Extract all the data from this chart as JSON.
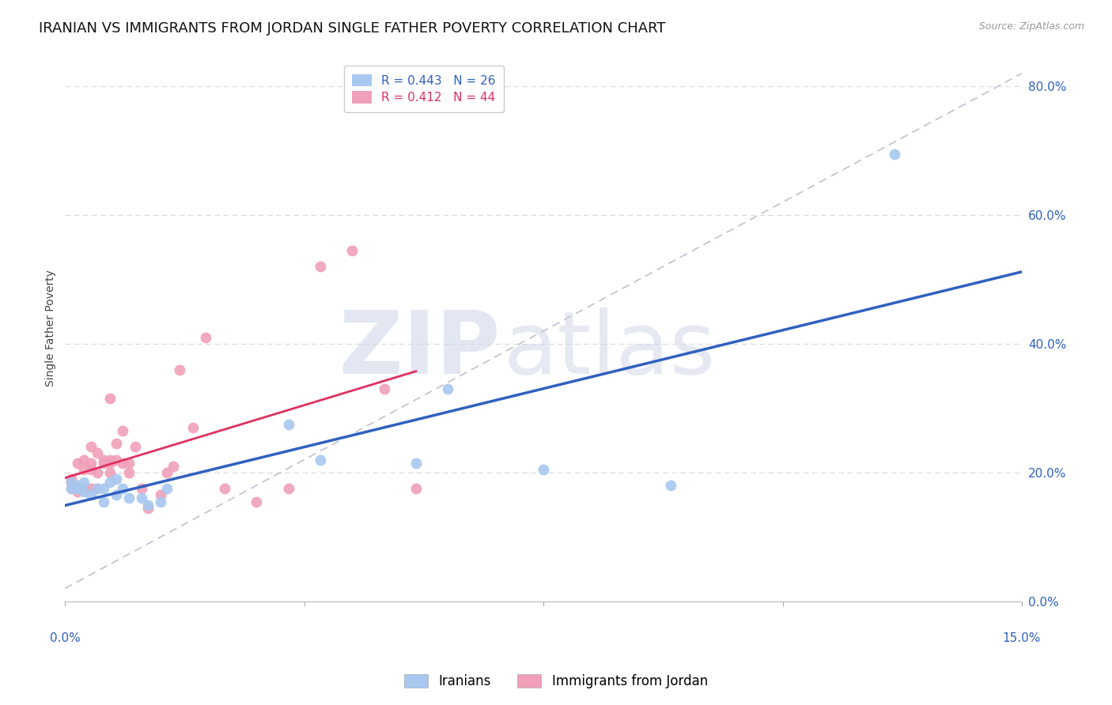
{
  "title": "IRANIAN VS IMMIGRANTS FROM JORDAN SINGLE FATHER POVERTY CORRELATION CHART",
  "source": "Source: ZipAtlas.com",
  "ylabel": "Single Father Poverty",
  "right_yticks": [
    0.0,
    0.2,
    0.4,
    0.6,
    0.8
  ],
  "right_yticklabels": [
    "0.0%",
    "20.0%",
    "40.0%",
    "60.0%",
    "80.0%"
  ],
  "xlim": [
    0.0,
    0.15
  ],
  "ylim": [
    0.0,
    0.85
  ],
  "legend_blue_R": "R = 0.443",
  "legend_blue_N": "N = 26",
  "legend_pink_R": "R = 0.412",
  "legend_pink_N": "N = 44",
  "blue_color": "#a8c8f0",
  "pink_color": "#f0a0b8",
  "blue_line_color": "#3060c0",
  "pink_line_color": "#e03060",
  "ref_line_color": "#c0c0d0",
  "background_color": "#ffffff",
  "grid_color": "#d8d8e0",
  "iranians_x": [
    0.001,
    0.001,
    0.002,
    0.002,
    0.003,
    0.003,
    0.004,
    0.005,
    0.006,
    0.006,
    0.007,
    0.008,
    0.008,
    0.009,
    0.01,
    0.012,
    0.013,
    0.015,
    0.016,
    0.035,
    0.04,
    0.055,
    0.06,
    0.075,
    0.095,
    0.13
  ],
  "iranians_y": [
    0.175,
    0.185,
    0.175,
    0.18,
    0.17,
    0.185,
    0.165,
    0.175,
    0.155,
    0.175,
    0.185,
    0.165,
    0.19,
    0.175,
    0.16,
    0.16,
    0.15,
    0.155,
    0.175,
    0.275,
    0.22,
    0.215,
    0.33,
    0.205,
    0.18,
    0.695
  ],
  "jordan_x": [
    0.001,
    0.001,
    0.001,
    0.002,
    0.002,
    0.002,
    0.003,
    0.003,
    0.003,
    0.004,
    0.004,
    0.004,
    0.004,
    0.005,
    0.005,
    0.005,
    0.006,
    0.006,
    0.007,
    0.007,
    0.007,
    0.007,
    0.008,
    0.008,
    0.009,
    0.009,
    0.01,
    0.01,
    0.011,
    0.012,
    0.013,
    0.015,
    0.016,
    0.017,
    0.018,
    0.02,
    0.022,
    0.025,
    0.03,
    0.035,
    0.04,
    0.045,
    0.05,
    0.055
  ],
  "jordan_y": [
    0.175,
    0.185,
    0.19,
    0.17,
    0.175,
    0.215,
    0.175,
    0.205,
    0.22,
    0.24,
    0.175,
    0.205,
    0.215,
    0.23,
    0.175,
    0.2,
    0.22,
    0.215,
    0.2,
    0.215,
    0.22,
    0.315,
    0.22,
    0.245,
    0.215,
    0.265,
    0.2,
    0.215,
    0.24,
    0.175,
    0.145,
    0.165,
    0.2,
    0.21,
    0.36,
    0.27,
    0.41,
    0.175,
    0.155,
    0.175,
    0.52,
    0.545,
    0.33,
    0.175
  ],
  "title_fontsize": 13,
  "axis_label_fontsize": 10,
  "legend_fontsize": 11
}
